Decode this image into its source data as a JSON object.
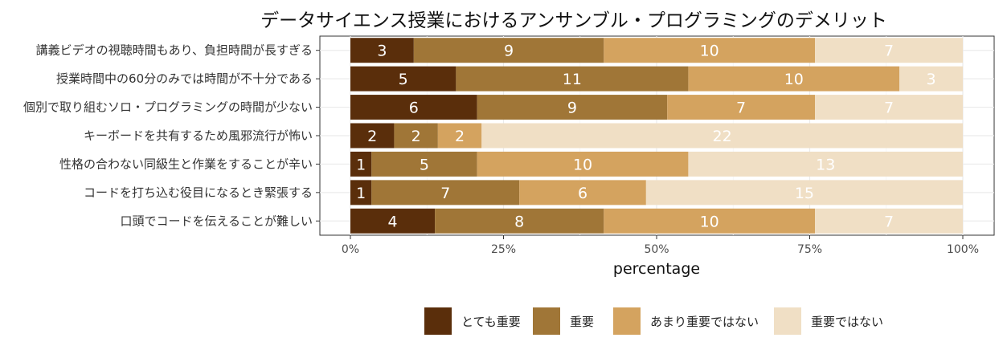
{
  "chart_data": {
    "type": "bar",
    "orientation": "horizontal",
    "stacked": "percent",
    "title": "データサイエンス授業におけるアンサンブル・プログラミングのデメリット",
    "xlabel": "percentage",
    "ylabel": "",
    "xlim": [
      0,
      100
    ],
    "x_ticks": [
      "0%",
      "25%",
      "50%",
      "75%",
      "100%"
    ],
    "grid": true,
    "legend_position": "bottom",
    "categories": [
      "講義ビデオの視聴時間もあり、負担時間が長すぎる",
      "授業時間中の60分のみでは時間が不十分である",
      "個別で取り組むソロ・プログラミングの時間が少ない",
      "キーボードを共有するため風邪流行が怖い",
      "性格の合わない同級生と作業をすることが辛い",
      "コードを打ち込む役目になるとき緊張する",
      "口頭でコードを伝えることが難しい"
    ],
    "series": [
      {
        "name": "とても重要",
        "color": "#5a2e0b",
        "values": [
          3,
          5,
          6,
          2,
          1,
          1,
          4
        ]
      },
      {
        "name": "重要",
        "color": "#a07637",
        "values": [
          9,
          11,
          9,
          2,
          5,
          7,
          8
        ]
      },
      {
        "name": "あまり重要ではない",
        "color": "#d4a35f",
        "values": [
          10,
          10,
          7,
          2,
          10,
          6,
          10
        ]
      },
      {
        "name": "重要ではない",
        "color": "#f0dfc5",
        "values": [
          7,
          3,
          7,
          22,
          13,
          15,
          7
        ]
      }
    ]
  }
}
